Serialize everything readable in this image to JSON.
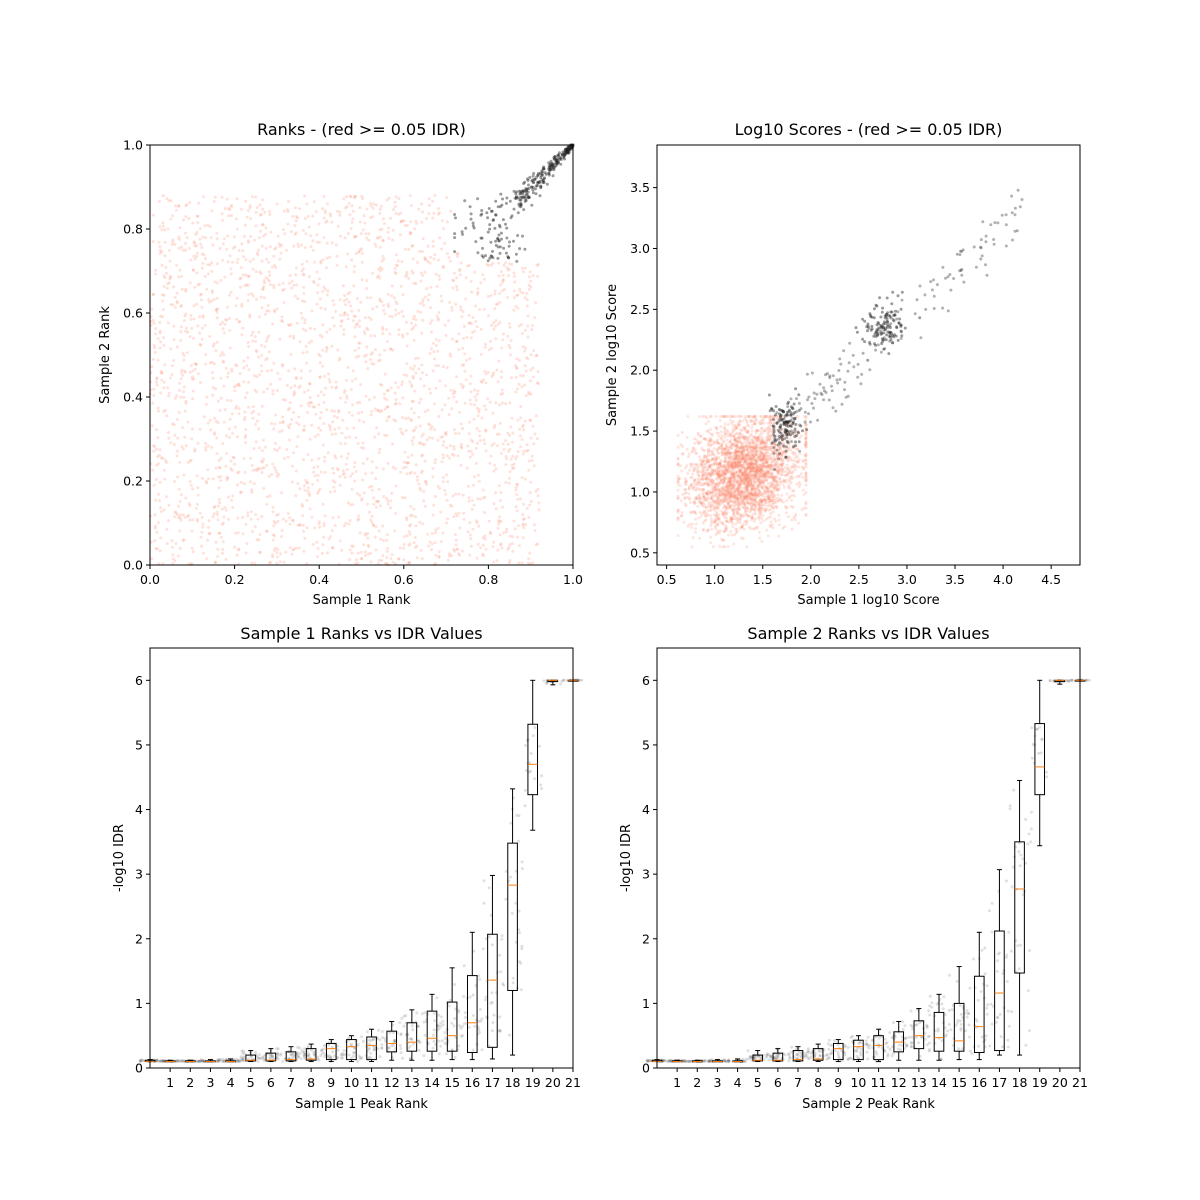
{
  "chart_data": [
    {
      "type": "scatter",
      "title": "Ranks - (red >= 0.05 IDR)",
      "xlabel": "Sample 1 Rank",
      "ylabel": "Sample 2 Rank",
      "xlim": [
        0.0,
        1.0
      ],
      "ylim": [
        0.0,
        1.0
      ],
      "xticks": [
        "0.0",
        "0.2",
        "0.4",
        "0.6",
        "0.8",
        "1.0"
      ],
      "yticks": [
        "0.0",
        "0.2",
        "0.4",
        "0.6",
        "0.8",
        "1.0"
      ],
      "grid": false,
      "series": [
        {
          "color": "#fa8a6e",
          "alpha": 0.25,
          "description_points": "~3000 points uniformly spread, x in [0, 0.92], y in [0, 0.88]"
        },
        {
          "color": "#222222",
          "alpha": 0.45,
          "description_points": "~300 points clustered along diagonal near top-right, x in [0.72, 1.0], y in [0.72, 1.0]"
        }
      ]
    },
    {
      "type": "scatter",
      "title": "Log10 Scores - (red >= 0.05 IDR)",
      "xlabel": "Sample 1 log10 Score",
      "ylabel": "Sample 2 log10 Score",
      "xlim": [
        0.4,
        4.8
      ],
      "ylim": [
        0.4,
        3.85
      ],
      "xticks": [
        "0.5",
        "1.0",
        "1.5",
        "2.0",
        "2.5",
        "3.0",
        "3.5",
        "4.0",
        "4.5"
      ],
      "yticks": [
        "0.5",
        "1.0",
        "1.5",
        "2.0",
        "2.5",
        "3.0",
        "3.5"
      ],
      "grid": false,
      "series": [
        {
          "color": "#fa8a6e",
          "alpha": 0.25,
          "center": [
            1.3,
            1.15
          ]
        },
        {
          "color": "#222222",
          "alpha": 0.45,
          "clusters": [
            [
              1.75,
              1.55
            ],
            [
              2.75,
              2.35
            ]
          ],
          "diagonal_range": [
            1.5,
            4.6
          ]
        }
      ]
    },
    {
      "type": "box",
      "title": "Sample 1 Ranks vs IDR Values",
      "xlabel": "Sample 1 Peak Rank",
      "ylabel": "-log10 IDR",
      "xlim": [
        0,
        21
      ],
      "ylim": [
        0,
        6.5
      ],
      "xticks": [
        "1",
        "2",
        "3",
        "4",
        "5",
        "6",
        "7",
        "8",
        "9",
        "10",
        "11",
        "12",
        "13",
        "14",
        "15",
        "16",
        "17",
        "18",
        "19",
        "20",
        "21"
      ],
      "yticks": [
        "0",
        "1",
        "2",
        "3",
        "4",
        "5",
        "6"
      ],
      "boxes": [
        {
          "pos": 0,
          "wlo": 0.1,
          "q1": 0.1,
          "med": 0.1,
          "q3": 0.12,
          "whi": 0.13
        },
        {
          "pos": 1,
          "wlo": 0.1,
          "q1": 0.1,
          "med": 0.1,
          "q3": 0.11,
          "whi": 0.12
        },
        {
          "pos": 2,
          "wlo": 0.1,
          "q1": 0.1,
          "med": 0.1,
          "q3": 0.11,
          "whi": 0.12
        },
        {
          "pos": 3,
          "wlo": 0.1,
          "q1": 0.1,
          "med": 0.1,
          "q3": 0.11,
          "whi": 0.13
        },
        {
          "pos": 4,
          "wlo": 0.1,
          "q1": 0.1,
          "med": 0.1,
          "q3": 0.11,
          "whi": 0.14
        },
        {
          "pos": 5,
          "wlo": 0.1,
          "q1": 0.11,
          "med": 0.12,
          "q3": 0.2,
          "whi": 0.27
        },
        {
          "pos": 6,
          "wlo": 0.1,
          "q1": 0.11,
          "med": 0.12,
          "q3": 0.23,
          "whi": 0.3
        },
        {
          "pos": 7,
          "wlo": 0.1,
          "q1": 0.11,
          "med": 0.13,
          "q3": 0.25,
          "whi": 0.33
        },
        {
          "pos": 8,
          "wlo": 0.1,
          "q1": 0.12,
          "med": 0.14,
          "q3": 0.3,
          "whi": 0.37
        },
        {
          "pos": 9,
          "wlo": 0.1,
          "q1": 0.13,
          "med": 0.3,
          "q3": 0.38,
          "whi": 0.44
        },
        {
          "pos": 10,
          "wlo": 0.1,
          "q1": 0.13,
          "med": 0.33,
          "q3": 0.44,
          "whi": 0.5
        },
        {
          "pos": 11,
          "wlo": 0.1,
          "q1": 0.13,
          "med": 0.35,
          "q3": 0.48,
          "whi": 0.6
        },
        {
          "pos": 12,
          "wlo": 0.12,
          "q1": 0.25,
          "med": 0.38,
          "q3": 0.57,
          "whi": 0.72
        },
        {
          "pos": 13,
          "wlo": 0.12,
          "q1": 0.26,
          "med": 0.4,
          "q3": 0.7,
          "whi": 0.9
        },
        {
          "pos": 14,
          "wlo": 0.12,
          "q1": 0.26,
          "med": 0.46,
          "q3": 0.88,
          "whi": 1.14
        },
        {
          "pos": 15,
          "wlo": 0.13,
          "q1": 0.26,
          "med": 0.5,
          "q3": 1.02,
          "whi": 1.55
        },
        {
          "pos": 16,
          "wlo": 0.13,
          "q1": 0.24,
          "med": 0.7,
          "q3": 1.43,
          "whi": 2.1
        },
        {
          "pos": 17,
          "wlo": 0.14,
          "q1": 0.32,
          "med": 1.36,
          "q3": 2.07,
          "whi": 2.98
        },
        {
          "pos": 18,
          "wlo": 0.2,
          "q1": 1.2,
          "med": 2.83,
          "q3": 3.48,
          "whi": 4.32
        },
        {
          "pos": 19,
          "wlo": 3.68,
          "q1": 4.23,
          "med": 4.7,
          "q3": 5.32,
          "whi": 6.0
        },
        {
          "pos": 20,
          "wlo": 5.93,
          "q1": 5.98,
          "med": 6.0,
          "q3": 6.0,
          "whi": 6.0
        },
        {
          "pos": 21,
          "wlo": 6.0,
          "q1": 6.0,
          "med": 6.0,
          "q3": 6.0,
          "whi": 6.0
        }
      ]
    },
    {
      "type": "box",
      "title": "Sample 2 Ranks vs IDR Values",
      "xlabel": "Sample 2 Peak Rank",
      "ylabel": "-log10 IDR",
      "xlim": [
        0,
        21
      ],
      "ylim": [
        0,
        6.5
      ],
      "xticks": [
        "1",
        "2",
        "3",
        "4",
        "5",
        "6",
        "7",
        "8",
        "9",
        "10",
        "11",
        "12",
        "13",
        "14",
        "15",
        "16",
        "17",
        "18",
        "19",
        "20",
        "21"
      ],
      "yticks": [
        "0",
        "1",
        "2",
        "3",
        "4",
        "5",
        "6"
      ],
      "boxes": [
        {
          "pos": 0,
          "wlo": 0.1,
          "q1": 0.1,
          "med": 0.1,
          "q3": 0.12,
          "whi": 0.13
        },
        {
          "pos": 1,
          "wlo": 0.1,
          "q1": 0.1,
          "med": 0.1,
          "q3": 0.11,
          "whi": 0.12
        },
        {
          "pos": 2,
          "wlo": 0.1,
          "q1": 0.1,
          "med": 0.1,
          "q3": 0.11,
          "whi": 0.12
        },
        {
          "pos": 3,
          "wlo": 0.1,
          "q1": 0.1,
          "med": 0.1,
          "q3": 0.11,
          "whi": 0.13
        },
        {
          "pos": 4,
          "wlo": 0.1,
          "q1": 0.1,
          "med": 0.1,
          "q3": 0.11,
          "whi": 0.14
        },
        {
          "pos": 5,
          "wlo": 0.1,
          "q1": 0.11,
          "med": 0.12,
          "q3": 0.2,
          "whi": 0.27
        },
        {
          "pos": 6,
          "wlo": 0.1,
          "q1": 0.11,
          "med": 0.12,
          "q3": 0.23,
          "whi": 0.3
        },
        {
          "pos": 7,
          "wlo": 0.1,
          "q1": 0.11,
          "med": 0.13,
          "q3": 0.27,
          "whi": 0.33
        },
        {
          "pos": 8,
          "wlo": 0.1,
          "q1": 0.12,
          "med": 0.14,
          "q3": 0.3,
          "whi": 0.37
        },
        {
          "pos": 9,
          "wlo": 0.1,
          "q1": 0.13,
          "med": 0.3,
          "q3": 0.38,
          "whi": 0.44
        },
        {
          "pos": 10,
          "wlo": 0.1,
          "q1": 0.13,
          "med": 0.33,
          "q3": 0.43,
          "whi": 0.5
        },
        {
          "pos": 11,
          "wlo": 0.1,
          "q1": 0.13,
          "med": 0.35,
          "q3": 0.5,
          "whi": 0.6
        },
        {
          "pos": 12,
          "wlo": 0.12,
          "q1": 0.25,
          "med": 0.4,
          "q3": 0.56,
          "whi": 0.72
        },
        {
          "pos": 13,
          "wlo": 0.12,
          "q1": 0.3,
          "med": 0.5,
          "q3": 0.73,
          "whi": 0.92
        },
        {
          "pos": 14,
          "wlo": 0.12,
          "q1": 0.26,
          "med": 0.47,
          "q3": 0.86,
          "whi": 1.14
        },
        {
          "pos": 15,
          "wlo": 0.13,
          "q1": 0.26,
          "med": 0.42,
          "q3": 1.0,
          "whi": 1.57
        },
        {
          "pos": 16,
          "wlo": 0.13,
          "q1": 0.24,
          "med": 0.64,
          "q3": 1.42,
          "whi": 2.1
        },
        {
          "pos": 17,
          "wlo": 0.2,
          "q1": 0.27,
          "med": 1.16,
          "q3": 2.12,
          "whi": 3.07
        },
        {
          "pos": 18,
          "wlo": 0.2,
          "q1": 1.47,
          "med": 2.77,
          "q3": 3.5,
          "whi": 4.45
        },
        {
          "pos": 19,
          "wlo": 3.44,
          "q1": 4.23,
          "med": 4.66,
          "q3": 5.33,
          "whi": 6.0
        },
        {
          "pos": 20,
          "wlo": 5.94,
          "q1": 5.98,
          "med": 6.0,
          "q3": 6.0,
          "whi": 6.0
        },
        {
          "pos": 21,
          "wlo": 6.0,
          "q1": 6.0,
          "med": 6.0,
          "q3": 6.0,
          "whi": 6.0
        }
      ]
    }
  ]
}
